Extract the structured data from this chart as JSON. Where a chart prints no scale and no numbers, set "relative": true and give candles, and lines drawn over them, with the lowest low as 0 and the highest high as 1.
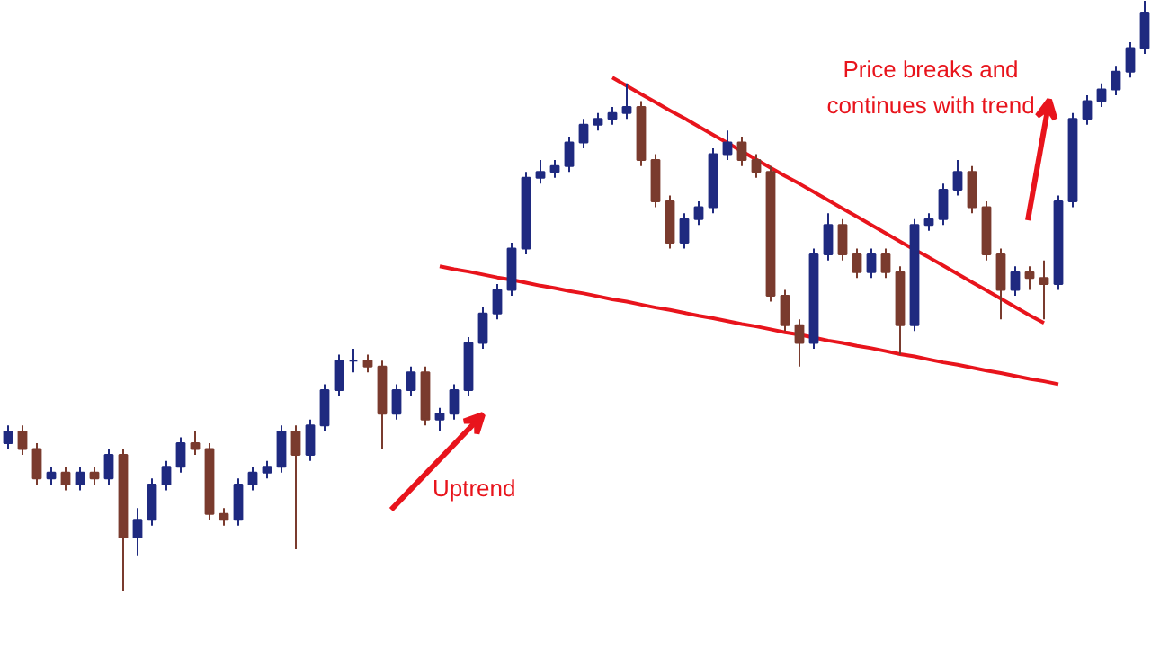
{
  "chart_data": {
    "type": "candlestick",
    "relative": true,
    "tick_labels": false,
    "grid": false,
    "categories": [
      null,
      null,
      null,
      null,
      null,
      null,
      null,
      null,
      null,
      null,
      null,
      null,
      null,
      null,
      null,
      null,
      null,
      null,
      null,
      null,
      null,
      null,
      null,
      null,
      null,
      null,
      null,
      null,
      null,
      null,
      null,
      null,
      null,
      null,
      null,
      null,
      null,
      null,
      null,
      null,
      null,
      null,
      null,
      null,
      null,
      null,
      null,
      null,
      null,
      null,
      null,
      null,
      null,
      null,
      null,
      null,
      null,
      null,
      null,
      null,
      null,
      null,
      null,
      null,
      null,
      null,
      null,
      null,
      null,
      null,
      null,
      null,
      null,
      null,
      null,
      null,
      null,
      null,
      null,
      null
    ],
    "ohlc": [
      [
        0.25,
        0.28,
        0.24,
        0.27
      ],
      [
        0.27,
        0.28,
        0.23,
        0.24
      ],
      [
        0.24,
        0.25,
        0.18,
        0.19
      ],
      [
        0.19,
        0.21,
        0.18,
        0.2
      ],
      [
        0.2,
        0.21,
        0.17,
        0.18
      ],
      [
        0.18,
        0.21,
        0.17,
        0.2
      ],
      [
        0.2,
        0.21,
        0.18,
        0.19
      ],
      [
        0.19,
        0.24,
        0.18,
        0.23
      ],
      [
        0.23,
        0.24,
        0,
        0.09
      ],
      [
        0.09,
        0.14,
        0.06,
        0.12
      ],
      [
        0.12,
        0.19,
        0.11,
        0.18
      ],
      [
        0.18,
        0.22,
        0.17,
        0.21
      ],
      [
        0.21,
        0.26,
        0.2,
        0.25
      ],
      [
        0.25,
        0.27,
        0.23,
        0.24
      ],
      [
        0.24,
        0.25,
        0.12,
        0.13
      ],
      [
        0.13,
        0.14,
        0.11,
        0.12
      ],
      [
        0.12,
        0.19,
        0.11,
        0.18
      ],
      [
        0.18,
        0.21,
        0.17,
        0.2
      ],
      [
        0.2,
        0.22,
        0.19,
        0.21
      ],
      [
        0.21,
        0.28,
        0.2,
        0.27
      ],
      [
        0.27,
        0.28,
        0.07,
        0.23
      ],
      [
        0.23,
        0.29,
        0.22,
        0.28
      ],
      [
        0.28,
        0.35,
        0.27,
        0.34
      ],
      [
        0.34,
        0.4,
        0.33,
        0.39
      ],
      [
        0.39,
        0.41,
        0.37,
        0.39
      ],
      [
        0.39,
        0.4,
        0.37,
        0.38
      ],
      [
        0.38,
        0.39,
        0.24,
        0.3
      ],
      [
        0.3,
        0.35,
        0.29,
        0.34
      ],
      [
        0.34,
        0.38,
        0.33,
        0.37
      ],
      [
        0.37,
        0.38,
        0.28,
        0.29
      ],
      [
        0.29,
        0.31,
        0.27,
        0.3
      ],
      [
        0.3,
        0.35,
        0.29,
        0.34
      ],
      [
        0.34,
        0.43,
        0.33,
        0.42
      ],
      [
        0.42,
        0.48,
        0.41,
        0.47
      ],
      [
        0.47,
        0.52,
        0.46,
        0.51
      ],
      [
        0.51,
        0.59,
        0.5,
        0.58
      ],
      [
        0.58,
        0.71,
        0.57,
        0.7
      ],
      [
        0.7,
        0.73,
        0.69,
        0.71
      ],
      [
        0.71,
        0.73,
        0.7,
        0.72
      ],
      [
        0.72,
        0.77,
        0.71,
        0.76
      ],
      [
        0.76,
        0.8,
        0.75,
        0.79
      ],
      [
        0.79,
        0.81,
        0.78,
        0.8
      ],
      [
        0.8,
        0.82,
        0.79,
        0.81
      ],
      [
        0.81,
        0.86,
        0.8,
        0.82
      ],
      [
        0.82,
        0.83,
        0.72,
        0.73
      ],
      [
        0.73,
        0.74,
        0.65,
        0.66
      ],
      [
        0.66,
        0.67,
        0.58,
        0.59
      ],
      [
        0.59,
        0.64,
        0.58,
        0.63
      ],
      [
        0.63,
        0.66,
        0.62,
        0.65
      ],
      [
        0.65,
        0.75,
        0.64,
        0.74
      ],
      [
        0.74,
        0.78,
        0.73,
        0.76
      ],
      [
        0.76,
        0.77,
        0.72,
        0.73
      ],
      [
        0.73,
        0.74,
        0.7,
        0.71
      ],
      [
        0.71,
        0.72,
        0.49,
        0.5
      ],
      [
        0.5,
        0.51,
        0.44,
        0.45
      ],
      [
        0.45,
        0.46,
        0.38,
        0.42
      ],
      [
        0.42,
        0.58,
        0.41,
        0.57
      ],
      [
        0.57,
        0.64,
        0.56,
        0.62
      ],
      [
        0.62,
        0.63,
        0.56,
        0.57
      ],
      [
        0.57,
        0.58,
        0.53,
        0.54
      ],
      [
        0.54,
        0.58,
        0.53,
        0.57
      ],
      [
        0.57,
        0.58,
        0.53,
        0.54
      ],
      [
        0.54,
        0.55,
        0.4,
        0.45
      ],
      [
        0.45,
        0.63,
        0.44,
        0.62
      ],
      [
        0.62,
        0.64,
        0.61,
        0.63
      ],
      [
        0.63,
        0.69,
        0.62,
        0.68
      ],
      [
        0.68,
        0.73,
        0.67,
        0.71
      ],
      [
        0.71,
        0.72,
        0.64,
        0.65
      ],
      [
        0.65,
        0.66,
        0.56,
        0.57
      ],
      [
        0.57,
        0.58,
        0.46,
        0.51
      ],
      [
        0.51,
        0.55,
        0.5,
        0.54
      ],
      [
        0.54,
        0.55,
        0.51,
        0.53
      ],
      [
        0.53,
        0.56,
        0.46,
        0.52
      ],
      [
        0.52,
        0.67,
        0.51,
        0.66
      ],
      [
        0.66,
        0.81,
        0.65,
        0.8
      ],
      [
        0.8,
        0.84,
        0.79,
        0.83
      ],
      [
        0.83,
        0.86,
        0.82,
        0.85
      ],
      [
        0.85,
        0.89,
        0.84,
        0.88
      ],
      [
        0.88,
        0.93,
        0.87,
        0.92
      ],
      [
        0.92,
        1,
        0.91,
        0.98
      ]
    ],
    "series": [
      {
        "type": "line",
        "color": "#e8141c",
        "values": [
          null,
          null,
          null,
          null,
          null,
          null,
          null,
          null,
          null,
          null,
          null,
          null,
          null,
          null,
          null,
          null,
          null,
          null,
          null,
          null,
          null,
          null,
          null,
          null,
          null,
          null,
          null,
          null,
          null,
          null,
          null,
          null,
          null,
          null,
          null,
          null,
          null,
          null,
          null,
          null,
          null,
          null,
          0.87,
          0.856,
          0.842,
          0.828,
          0.814,
          0.801,
          0.787,
          0.773,
          0.759,
          0.745,
          0.731,
          0.717,
          0.703,
          0.69,
          0.676,
          0.662,
          0.648,
          0.634,
          0.62,
          0.606,
          0.592,
          0.578,
          0.565,
          0.551,
          0.537,
          0.523,
          0.509,
          0.495,
          0.481,
          0.467,
          0.454,
          null,
          null,
          null,
          null,
          null,
          null,
          null
        ]
      },
      {
        "type": "line",
        "color": "#e8141c",
        "values": [
          null,
          null,
          null,
          null,
          null,
          null,
          null,
          null,
          null,
          null,
          null,
          null,
          null,
          null,
          null,
          null,
          null,
          null,
          null,
          null,
          null,
          null,
          null,
          null,
          null,
          null,
          null,
          null,
          null,
          null,
          0.55,
          0.545,
          0.541,
          0.536,
          0.531,
          0.527,
          0.522,
          0.517,
          0.513,
          0.508,
          0.504,
          0.499,
          0.494,
          0.49,
          0.485,
          0.48,
          0.476,
          0.471,
          0.466,
          0.462,
          0.457,
          0.452,
          0.448,
          0.443,
          0.438,
          0.434,
          0.429,
          0.424,
          0.42,
          0.415,
          0.411,
          0.406,
          0.401,
          0.397,
          0.392,
          0.387,
          0.383,
          0.378,
          0.373,
          0.369,
          0.364,
          0.359,
          0.355,
          0.35,
          null,
          null,
          null,
          null,
          null,
          null
        ]
      }
    ],
    "annotations": [
      "Uptrend",
      "Price breaks and\ncontinues with trend"
    ]
  }
}
